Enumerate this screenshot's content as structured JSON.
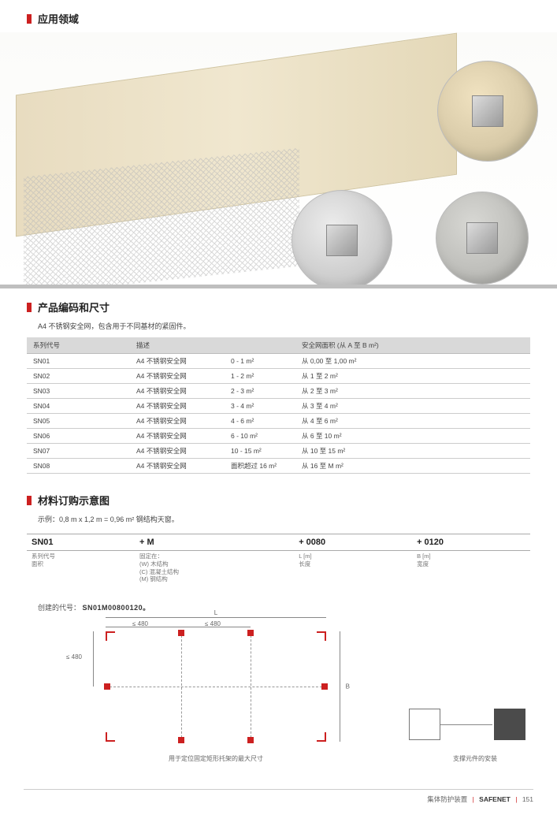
{
  "sections": {
    "application": "应用领域",
    "product_codes": "产品编码和尺寸",
    "product_sub": "A4 不锈钢安全网，包含用于不同基材的紧固件。",
    "order_example": "材料订购示意图",
    "order_sub": "示例：0,8 m x 1,2 m = 0,96 m² 钢结构天窗。"
  },
  "product_table": {
    "headers": {
      "code": "系列代号",
      "desc": "描述",
      "area": "安全网面积 (从 A 至 B m²)"
    },
    "rows": [
      {
        "code": "SN01",
        "desc_a": "A4 不锈钢安全网",
        "desc_b": "0 - 1 m²",
        "area": "从 0,00 至 1,00 m²"
      },
      {
        "code": "SN02",
        "desc_a": "A4 不锈钢安全网",
        "desc_b": "1 - 2 m²",
        "area": "从 1 至 2 m²"
      },
      {
        "code": "SN03",
        "desc_a": "A4 不锈钢安全网",
        "desc_b": "2 - 3 m²",
        "area": "从 2 至 3 m²"
      },
      {
        "code": "SN04",
        "desc_a": "A4 不锈钢安全网",
        "desc_b": "3 - 4 m²",
        "area": "从 3 至 4 m²"
      },
      {
        "code": "SN05",
        "desc_a": "A4 不锈钢安全网",
        "desc_b": "4 - 6 m²",
        "area": "从 4 至 6 m²"
      },
      {
        "code": "SN06",
        "desc_a": "A4 不锈钢安全网",
        "desc_b": "6 - 10 m²",
        "area": "从 6 至 10 m²"
      },
      {
        "code": "SN07",
        "desc_a": "A4 不锈钢安全网",
        "desc_b": "10 - 15 m²",
        "area": "从 10 至 15 m²"
      },
      {
        "code": "SN08",
        "desc_a": "A4 不锈钢安全网",
        "desc_b": "面积超过 16 m²",
        "area": "从 16 至 M m²"
      }
    ]
  },
  "order_table": {
    "cells": {
      "c1": "SN01",
      "c2": "+ M",
      "c3": "+ 0080",
      "c4": "+ 0120"
    },
    "sub": {
      "s1a": "系列代号",
      "s1b": "面积",
      "s2a": "固定在：",
      "s2b": "(W) 木结构",
      "s2c": "(C) 混凝土结构",
      "s2d": "(M) 钢结构",
      "s3a": "L [m]",
      "s3b": "长度",
      "s4a": "B [m]",
      "s4b": "宽度"
    }
  },
  "result": {
    "label": "创建的代号：",
    "code": "SN01M00800120。"
  },
  "diagram": {
    "L": "L",
    "B": "B",
    "lt480_a": "≤ 480",
    "lt480_b": "≤ 480",
    "lt480_left": "≤ 480",
    "caption_left": "用于定位固定矩形托架的最大尺寸",
    "caption_right": "支撑元件的安装"
  },
  "footer": {
    "left": "集体防护装置",
    "mid": "SAFENET",
    "page": "151"
  },
  "colors": {
    "accent": "#cc2020",
    "gray_strip": "#bfbfbf"
  }
}
